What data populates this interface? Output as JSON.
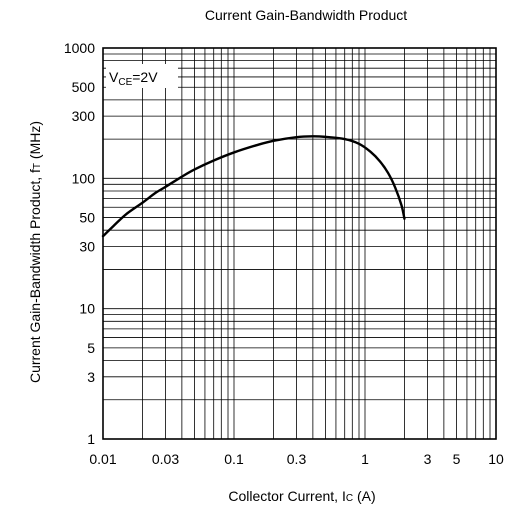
{
  "chart_data": {
    "type": "line",
    "title": "Current Gain-Bandwidth Product",
    "xlabel": "Collector Current, I",
    "xlabel_sub": "C",
    "xlabel_tail": " (A)",
    "ylabel": "Current Gain-Bandwidth Product, f",
    "ylabel_sub": "T",
    "ylabel_tail": " (MHz)",
    "annotation": {
      "main": "V",
      "sub": "CE",
      "tail": "=2V"
    },
    "x_scale": "log",
    "y_scale": "log",
    "xlim": [
      0.01,
      10
    ],
    "ylim": [
      1,
      1000
    ],
    "x_ticks": [
      {
        "value": 0.01,
        "label": "0.01"
      },
      {
        "value": 0.03,
        "label": "0.03"
      },
      {
        "value": 0.1,
        "label": "0.1"
      },
      {
        "value": 0.3,
        "label": "0.3"
      },
      {
        "value": 1,
        "label": "1"
      },
      {
        "value": 3,
        "label": "3"
      },
      {
        "value": 5,
        "label": "5"
      },
      {
        "value": 10,
        "label": "10"
      }
    ],
    "y_ticks": [
      {
        "value": 1,
        "label": "1"
      },
      {
        "value": 3,
        "label": "3"
      },
      {
        "value": 5,
        "label": "5"
      },
      {
        "value": 10,
        "label": "10"
      },
      {
        "value": 30,
        "label": "30"
      },
      {
        "value": 50,
        "label": "50"
      },
      {
        "value": 100,
        "label": "100"
      },
      {
        "value": 300,
        "label": "300"
      },
      {
        "value": 500,
        "label": "500"
      },
      {
        "value": 1000,
        "label": "1000"
      }
    ],
    "grid": true,
    "series": [
      {
        "x": [
          0.01,
          0.012,
          0.015,
          0.02,
          0.025,
          0.03,
          0.04,
          0.05,
          0.07,
          0.1,
          0.15,
          0.2,
          0.3,
          0.4,
          0.5,
          0.7,
          0.9,
          1.1,
          1.3,
          1.5,
          1.7,
          1.9,
          2.0
        ],
        "y": [
          36,
          43,
          53,
          65,
          77,
          86,
          103,
          117,
          137,
          158,
          180,
          194,
          207,
          210,
          208,
          200,
          184,
          160,
          135,
          110,
          85,
          62,
          49
        ]
      }
    ]
  }
}
